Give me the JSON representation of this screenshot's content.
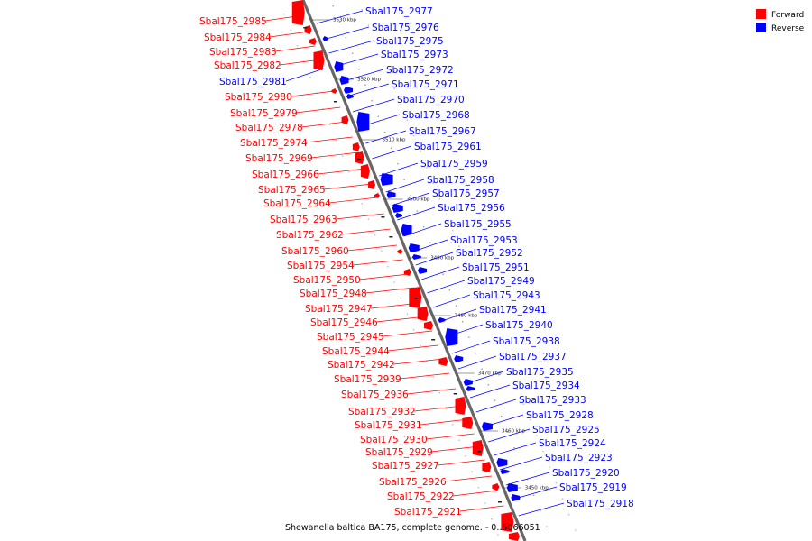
{
  "caption": "Shewanella baltica BA175, complete genome. - 0..5066051",
  "colors": {
    "forward": "#ff0000",
    "reverse": "#0000ff",
    "backbone": "#666666"
  },
  "legend": {
    "forward": "Forward",
    "reverse": "Reverse"
  },
  "ticks": [
    "3530 kbp",
    "3520 kbp",
    "3510 kbp",
    "3500 kbp",
    "3490 kbp",
    "3480 kbp",
    "3470 kbp",
    "3460 kbp",
    "3450 kbp"
  ],
  "forward_genes": [
    "Sbal175_2985",
    "Sbal175_2984",
    "Sbal175_2983",
    "Sbal175_2982",
    "Sbal175_2980",
    "Sbal175_2979",
    "Sbal175_2978",
    "Sbal175_2974",
    "Sbal175_2969",
    "Sbal175_2966",
    "Sbal175_2965",
    "Sbal175_2964",
    "Sbal175_2963",
    "Sbal175_2962",
    "Sbal175_2960",
    "Sbal175_2954",
    "Sbal175_2950",
    "Sbal175_2948",
    "Sbal175_2947",
    "Sbal175_2946",
    "Sbal175_2945",
    "Sbal175_2944",
    "Sbal175_2942",
    "Sbal175_2939",
    "Sbal175_2936",
    "Sbal175_2932",
    "Sbal175_2931",
    "Sbal175_2930",
    "Sbal175_2929",
    "Sbal175_2927",
    "Sbal175_2926",
    "Sbal175_2922",
    "Sbal175_2921"
  ],
  "reverse_genes": [
    "Sbal175_2981",
    "Sbal175_2977",
    "Sbal175_2976",
    "Sbal175_2975",
    "Sbal175_2973",
    "Sbal175_2972",
    "Sbal175_2971",
    "Sbal175_2970",
    "Sbal175_2968",
    "Sbal175_2967",
    "Sbal175_2961",
    "Sbal175_2959",
    "Sbal175_2958",
    "Sbal175_2957",
    "Sbal175_2956",
    "Sbal175_2955",
    "Sbal175_2953",
    "Sbal175_2952",
    "Sbal175_2951",
    "Sbal175_2949",
    "Sbal175_2943",
    "Sbal175_2941",
    "Sbal175_2940",
    "Sbal175_2938",
    "Sbal175_2937",
    "Sbal175_2935",
    "Sbal175_2934",
    "Sbal175_2933",
    "Sbal175_2928",
    "Sbal175_2925",
    "Sbal175_2924",
    "Sbal175_2923",
    "Sbal175_2920",
    "Sbal175_2919",
    "Sbal175_2918"
  ]
}
